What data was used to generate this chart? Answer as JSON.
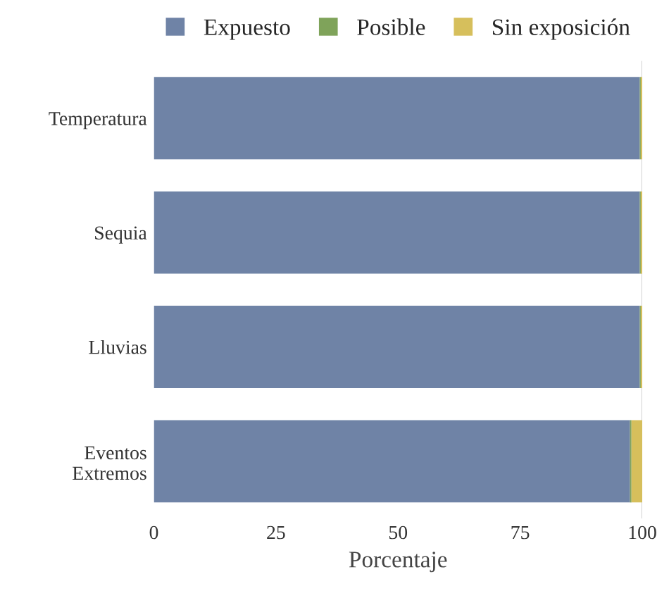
{
  "chart_data": {
    "type": "bar",
    "orientation": "horizontal",
    "stacked": true,
    "categories": [
      "Temperatura",
      "Sequia",
      "Lluvias",
      "Eventos\nExtremos"
    ],
    "series": [
      {
        "name": "Expuesto",
        "color": "#6f83a6",
        "values": [
          99.5,
          99.5,
          99.5,
          97.5
        ]
      },
      {
        "name": "Posible",
        "color": "#7fa35a",
        "values": [
          0.2,
          0.2,
          0.2,
          0.3
        ]
      },
      {
        "name": "Sin exposición",
        "color": "#d6bf5c",
        "values": [
          0.3,
          0.3,
          0.3,
          2.2
        ]
      }
    ],
    "xlabel": "Porcentaje",
    "xlim": [
      0,
      100
    ],
    "xticks": [
      0,
      25,
      50,
      75,
      100
    ],
    "ref_lines": [
      {
        "axis": "x",
        "value": 100,
        "color": "#dddddd"
      }
    ],
    "grid": false,
    "legend": "top"
  }
}
